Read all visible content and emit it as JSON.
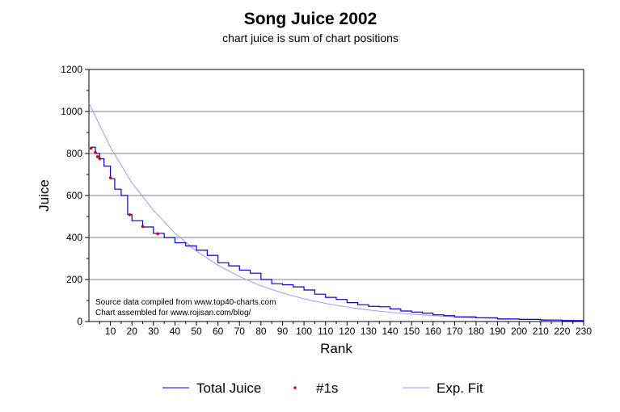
{
  "colors": {
    "total_juice": "#0000cc",
    "number_ones": "#cc0000",
    "exp_fit": "#9999ff",
    "grid": "#808080"
  },
  "chart_data": {
    "type": "line",
    "title": "Song Juice 2002",
    "subtitle": "chart juice is sum of chart positions",
    "xlabel": "Rank",
    "ylabel": "Juice",
    "xlim": [
      0,
      230
    ],
    "ylim": [
      0,
      1200
    ],
    "x_ticks": [
      10,
      20,
      30,
      40,
      50,
      60,
      70,
      80,
      90,
      100,
      110,
      120,
      130,
      140,
      150,
      160,
      170,
      180,
      190,
      200,
      210,
      220,
      230
    ],
    "y_ticks": [
      0,
      200,
      400,
      600,
      800,
      1000,
      1200
    ],
    "grid": "horizontal",
    "legend_position": "bottom",
    "annotations": [
      "Source data compiled from www.top40-charts.com",
      "Chart assembled for www.rojisan.com/blog/"
    ],
    "series": [
      {
        "name": "Total Juice",
        "style": "line",
        "x": [
          1,
          3,
          5,
          7,
          10,
          12,
          15,
          18,
          20,
          25,
          30,
          35,
          40,
          45,
          50,
          55,
          60,
          65,
          70,
          75,
          80,
          85,
          90,
          95,
          100,
          105,
          110,
          115,
          120,
          125,
          130,
          135,
          140,
          145,
          150,
          155,
          160,
          165,
          170,
          180,
          190,
          200,
          210,
          220,
          230
        ],
        "y": [
          830,
          800,
          775,
          740,
          680,
          630,
          600,
          510,
          480,
          450,
          420,
          400,
          375,
          360,
          340,
          315,
          280,
          265,
          245,
          230,
          200,
          180,
          175,
          165,
          150,
          130,
          115,
          105,
          90,
          80,
          72,
          70,
          60,
          50,
          45,
          40,
          32,
          28,
          22,
          18,
          12,
          10,
          7,
          4,
          2
        ]
      },
      {
        "name": "#1s",
        "style": "markers",
        "x": [
          1,
          3,
          4,
          5,
          10,
          19,
          25,
          32
        ],
        "y": [
          825,
          805,
          785,
          775,
          685,
          508,
          452,
          418
        ]
      },
      {
        "name": "Exp. Fit",
        "style": "line",
        "x": [
          0,
          10,
          20,
          30,
          40,
          50,
          60,
          70,
          80,
          90,
          100,
          110,
          120,
          130,
          140,
          150,
          160,
          170,
          180,
          190,
          200,
          210,
          220,
          230
        ],
        "y": [
          1040,
          830,
          660,
          530,
          420,
          335,
          268,
          214,
          170,
          136,
          108,
          86,
          69,
          55,
          44,
          35,
          28,
          22,
          18,
          14,
          11,
          9,
          7,
          6
        ]
      }
    ]
  }
}
